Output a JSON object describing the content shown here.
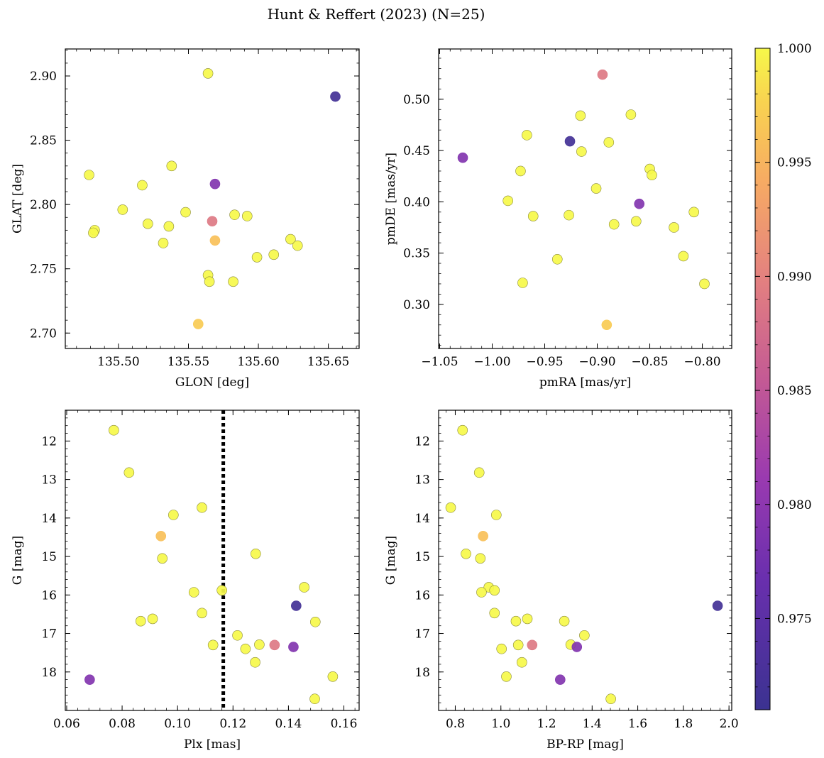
{
  "chart_data": {
    "title": "Hunt & Reffert (2023) (N=25)",
    "colorbar": {
      "colormap": "plasma",
      "range": [
        0.971,
        1.0
      ],
      "ticks": [
        0.975,
        0.98,
        0.985,
        0.99,
        0.995,
        1.0
      ],
      "tick_labels": [
        "0.975",
        "0.980",
        "0.985",
        "0.990",
        "0.995",
        "1.000"
      ]
    },
    "panels": [
      {
        "id": "glon-glat",
        "type": "scatter",
        "xlabel": "GLON [deg]",
        "ylabel": "GLAT [deg]",
        "xlim": [
          135.462,
          135.672
        ],
        "ylim": [
          2.688,
          2.921
        ],
        "invert_y": false,
        "xticks": [
          135.5,
          135.55,
          135.6,
          135.65
        ],
        "xtick_labels": [
          "135.50",
          "135.55",
          "135.60",
          "135.65"
        ],
        "yticks": [
          2.7,
          2.75,
          2.8,
          2.85,
          2.9
        ],
        "ytick_labels": [
          "2.70",
          "2.75",
          "2.80",
          "2.85",
          "2.90"
        ],
        "x": [
          135.564,
          135.655,
          135.569,
          135.567,
          135.569,
          135.479,
          135.517,
          135.538,
          135.503,
          135.548,
          135.583,
          135.592,
          135.521,
          135.536,
          135.483,
          135.482,
          135.532,
          135.623,
          135.628,
          135.611,
          135.599,
          135.564,
          135.565,
          135.582,
          135.557
        ],
        "y": [
          2.902,
          2.884,
          2.816,
          2.787,
          2.772,
          2.823,
          2.815,
          2.83,
          2.796,
          2.794,
          2.792,
          2.791,
          2.785,
          2.783,
          2.78,
          2.778,
          2.77,
          2.773,
          2.768,
          2.761,
          2.759,
          2.745,
          2.74,
          2.74,
          2.707
        ]
      },
      {
        "id": "pm",
        "type": "scatter",
        "xlabel": "pmRA [mas/yr]",
        "ylabel": "pmDE [mas/yr]",
        "xlim": [
          -1.051,
          -0.772
        ],
        "ylim": [
          0.257,
          0.549
        ],
        "invert_y": false,
        "xticks": [
          -1.05,
          -1.0,
          -0.95,
          -0.9,
          -0.85,
          -0.8
        ],
        "xtick_labels": [
          "−1.05",
          "−1.00",
          "−0.95",
          "−0.90",
          "−0.85",
          "−0.80"
        ],
        "yticks": [
          0.3,
          0.35,
          0.4,
          0.45,
          0.5
        ],
        "ytick_labels": [
          "0.30",
          "0.35",
          "0.40",
          "0.45",
          "0.50"
        ],
        "x": [
          -0.895,
          -0.926,
          -1.028,
          -0.86,
          -0.85,
          -0.916,
          -0.868,
          -0.967,
          -0.889,
          -0.915,
          -0.973,
          -0.848,
          -0.901,
          -0.985,
          -0.961,
          -0.927,
          -0.884,
          -0.863,
          -0.827,
          -0.808,
          -0.818,
          -0.938,
          -0.971,
          -0.798,
          -0.891
        ],
        "y": [
          0.524,
          0.459,
          0.443,
          0.398,
          0.432,
          0.484,
          0.485,
          0.465,
          0.458,
          0.449,
          0.43,
          0.426,
          0.413,
          0.401,
          0.386,
          0.387,
          0.378,
          0.381,
          0.375,
          0.39,
          0.347,
          0.344,
          0.321,
          0.32,
          0.28
        ]
      },
      {
        "id": "plx-g",
        "type": "scatter",
        "xlabel": "Plx [mas]",
        "ylabel": "G [mag]",
        "xlim": [
          0.0595,
          0.1655
        ],
        "ylim": [
          11.2,
          19.0
        ],
        "invert_y": true,
        "xticks": [
          0.06,
          0.08,
          0.1,
          0.12,
          0.14,
          0.16
        ],
        "xtick_labels": [
          "0.06",
          "0.08",
          "0.10",
          "0.12",
          "0.14",
          "0.16"
        ],
        "yticks": [
          12,
          13,
          14,
          15,
          16,
          17,
          18
        ],
        "ytick_labels": [
          "12",
          "13",
          "14",
          "15",
          "16",
          "17",
          "18"
        ],
        "vline": 0.1165,
        "x": [
          0.077,
          0.0825,
          0.1088,
          0.0985,
          0.094,
          0.0945,
          0.1282,
          0.1457,
          0.116,
          0.1059,
          0.1088,
          0.1428,
          0.091,
          0.0867,
          0.1497,
          0.1216,
          0.1128,
          0.1295,
          0.135,
          0.1418,
          0.1245,
          0.128,
          0.0683,
          0.156,
          0.1495
        ],
        "y": [
          11.72,
          12.82,
          13.73,
          13.92,
          14.47,
          15.05,
          14.93,
          15.8,
          15.88,
          15.93,
          16.47,
          16.28,
          16.62,
          16.68,
          16.7,
          17.05,
          17.3,
          17.29,
          17.3,
          17.35,
          17.4,
          17.75,
          18.2,
          18.12,
          18.7
        ]
      },
      {
        "id": "bprp-g",
        "type": "scatter",
        "xlabel": "BP-RP [mag]",
        "ylabel": "G [mag]",
        "xlim": [
          0.727,
          2.012
        ],
        "ylim": [
          11.2,
          19.0
        ],
        "invert_y": true,
        "xticks": [
          0.8,
          1.0,
          1.2,
          1.4,
          1.6,
          1.8,
          2.0
        ],
        "xtick_labels": [
          "0.8",
          "1.0",
          "1.2",
          "1.4",
          "1.6",
          "1.8",
          "2.0"
        ],
        "yticks": [
          12,
          13,
          14,
          15,
          16,
          17,
          18
        ],
        "ytick_labels": [
          "12",
          "13",
          "14",
          "15",
          "16",
          "17",
          "18"
        ],
        "x": [
          0.832,
          0.905,
          0.78,
          0.98,
          0.922,
          0.847,
          0.91,
          0.947,
          0.972,
          0.915,
          0.972,
          1.95,
          1.116,
          1.066,
          1.278,
          1.366,
          1.137,
          1.076,
          1.306,
          1.333,
          1.003,
          1.092,
          1.26,
          1.024,
          1.482
        ],
        "y": [
          11.72,
          12.82,
          13.73,
          13.92,
          14.47,
          14.93,
          15.05,
          15.8,
          15.88,
          15.93,
          16.47,
          16.28,
          16.62,
          16.68,
          16.68,
          17.05,
          17.3,
          17.3,
          17.29,
          17.35,
          17.4,
          17.75,
          18.2,
          18.12,
          18.7
        ]
      }
    ],
    "colors": [
      1.0,
      0.972,
      0.979,
      0.989,
      0.996,
      1.0,
      1.0,
      1.0,
      1.0,
      1.0,
      1.0,
      1.0,
      1.0,
      1.0,
      1.0,
      1.0,
      1.0,
      1.0,
      1.0,
      1.0,
      1.0,
      1.0,
      1.0,
      1.0,
      0.997
    ],
    "color_index_panels": {
      "glon-glat": [
        0,
        1,
        2,
        3,
        4,
        5,
        6,
        7,
        8,
        9,
        10,
        11,
        12,
        13,
        14,
        15,
        16,
        17,
        18,
        19,
        20,
        21,
        22,
        23,
        24
      ],
      "pm": [
        3,
        1,
        2,
        2,
        0,
        0,
        0,
        0,
        0,
        0,
        0,
        0,
        0,
        0,
        0,
        0,
        0,
        0,
        0,
        0,
        0,
        0,
        0,
        0,
        24
      ],
      "plx-g": [
        0,
        0,
        0,
        0,
        4,
        0,
        0,
        0,
        0,
        0,
        0,
        1,
        0,
        0,
        0,
        0,
        0,
        0,
        3,
        2,
        0,
        0,
        2,
        0,
        0
      ],
      "bprp-g": [
        0,
        0,
        0,
        0,
        4,
        0,
        0,
        0,
        0,
        0,
        0,
        1,
        0,
        0,
        0,
        0,
        3,
        0,
        0,
        2,
        0,
        0,
        2,
        0,
        0
      ]
    }
  }
}
